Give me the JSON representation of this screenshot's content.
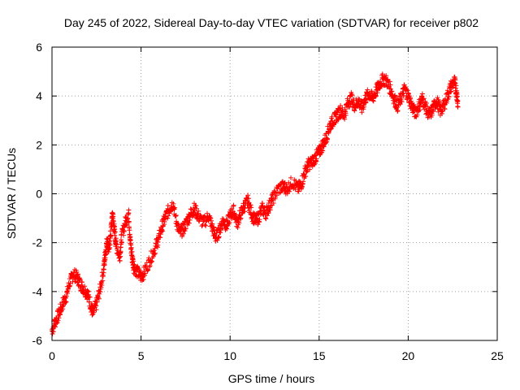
{
  "chart_data": {
    "type": "scatter",
    "title": "Day 245 of 2022, Sidereal Day-to-day VTEC variation (SDTVAR) for receiver p802",
    "xlabel": "GPS time / hours",
    "ylabel": "SDTVAR / TECUs",
    "xlim": [
      0,
      25
    ],
    "ylim": [
      -6,
      6
    ],
    "xticks": [
      0,
      5,
      10,
      15,
      20,
      25
    ],
    "yticks": [
      -6,
      -4,
      -2,
      0,
      2,
      4,
      6
    ],
    "grid": true,
    "marker": "+",
    "series": [
      {
        "name": "SDTVAR",
        "color": "#ff0000",
        "trace": [
          [
            0.0,
            -5.6
          ],
          [
            0.2,
            -5.2
          ],
          [
            0.4,
            -4.9
          ],
          [
            0.6,
            -4.5
          ],
          [
            0.8,
            -4.2
          ],
          [
            1.0,
            -3.6
          ],
          [
            1.2,
            -3.3
          ],
          [
            1.4,
            -3.4
          ],
          [
            1.6,
            -3.7
          ],
          [
            1.8,
            -3.9
          ],
          [
            2.0,
            -4.1
          ],
          [
            2.2,
            -4.6
          ],
          [
            2.3,
            -4.9
          ],
          [
            2.5,
            -4.5
          ],
          [
            2.7,
            -3.9
          ],
          [
            2.9,
            -3.1
          ],
          [
            3.0,
            -2.4
          ],
          [
            3.1,
            -1.9
          ],
          [
            3.2,
            -2.3
          ],
          [
            3.3,
            -1.6
          ],
          [
            3.4,
            -0.8
          ],
          [
            3.5,
            -1.5
          ],
          [
            3.6,
            -2.1
          ],
          [
            3.8,
            -2.6
          ],
          [
            3.9,
            -1.8
          ],
          [
            4.1,
            -1.2
          ],
          [
            4.3,
            -0.8
          ],
          [
            4.4,
            -2.0
          ],
          [
            4.5,
            -2.6
          ],
          [
            4.6,
            -3.0
          ],
          [
            4.8,
            -3.2
          ],
          [
            5.0,
            -3.4
          ],
          [
            5.2,
            -3.2
          ],
          [
            5.5,
            -2.7
          ],
          [
            5.8,
            -2.2
          ],
          [
            6.0,
            -1.8
          ],
          [
            6.2,
            -1.3
          ],
          [
            6.4,
            -0.9
          ],
          [
            6.6,
            -0.6
          ],
          [
            6.8,
            -0.4
          ],
          [
            7.0,
            -1.2
          ],
          [
            7.2,
            -1.6
          ],
          [
            7.4,
            -1.4
          ],
          [
            7.6,
            -1.1
          ],
          [
            7.8,
            -0.8
          ],
          [
            8.0,
            -0.6
          ],
          [
            8.2,
            -0.9
          ],
          [
            8.5,
            -1.2
          ],
          [
            8.8,
            -0.9
          ],
          [
            9.0,
            -1.4
          ],
          [
            9.2,
            -1.8
          ],
          [
            9.4,
            -1.5
          ],
          [
            9.6,
            -1.1
          ],
          [
            9.8,
            -1.3
          ],
          [
            10.0,
            -0.9
          ],
          [
            10.2,
            -0.7
          ],
          [
            10.4,
            -1.2
          ],
          [
            10.6,
            -0.8
          ],
          [
            10.8,
            -0.5
          ],
          [
            11.0,
            -0.3
          ],
          [
            11.2,
            -0.8
          ],
          [
            11.4,
            -1.1
          ],
          [
            11.6,
            -1.0
          ],
          [
            11.8,
            -0.6
          ],
          [
            12.0,
            -0.8
          ],
          [
            12.2,
            -0.5
          ],
          [
            12.4,
            -0.2
          ],
          [
            12.7,
            0.2
          ],
          [
            13.0,
            0.3
          ],
          [
            13.2,
            0.2
          ],
          [
            13.5,
            0.5
          ],
          [
            13.8,
            0.2
          ],
          [
            14.0,
            0.4
          ],
          [
            14.2,
            0.9
          ],
          [
            14.4,
            1.2
          ],
          [
            14.6,
            1.3
          ],
          [
            14.8,
            1.5
          ],
          [
            15.0,
            1.7
          ],
          [
            15.2,
            2.0
          ],
          [
            15.4,
            2.3
          ],
          [
            15.6,
            2.8
          ],
          [
            15.8,
            3.0
          ],
          [
            16.0,
            3.2
          ],
          [
            16.2,
            3.4
          ],
          [
            16.4,
            3.2
          ],
          [
            16.6,
            3.7
          ],
          [
            16.8,
            3.9
          ],
          [
            17.0,
            3.6
          ],
          [
            17.2,
            3.8
          ],
          [
            17.4,
            3.5
          ],
          [
            17.6,
            3.9
          ],
          [
            17.8,
            4.1
          ],
          [
            18.0,
            3.9
          ],
          [
            18.2,
            4.2
          ],
          [
            18.4,
            4.5
          ],
          [
            18.6,
            4.7
          ],
          [
            18.8,
            4.6
          ],
          [
            19.0,
            4.3
          ],
          [
            19.2,
            3.9
          ],
          [
            19.4,
            3.6
          ],
          [
            19.6,
            3.9
          ],
          [
            19.8,
            4.3
          ],
          [
            20.0,
            4.0
          ],
          [
            20.2,
            3.6
          ],
          [
            20.4,
            3.3
          ],
          [
            20.6,
            3.6
          ],
          [
            20.8,
            3.9
          ],
          [
            21.0,
            3.5
          ],
          [
            21.2,
            3.2
          ],
          [
            21.4,
            3.5
          ],
          [
            21.6,
            3.8
          ],
          [
            21.8,
            3.4
          ],
          [
            22.0,
            3.6
          ],
          [
            22.2,
            4.0
          ],
          [
            22.4,
            4.4
          ],
          [
            22.6,
            4.6
          ],
          [
            22.7,
            4.2
          ],
          [
            22.8,
            3.7
          ]
        ],
        "spread": 0.25
      }
    ]
  }
}
